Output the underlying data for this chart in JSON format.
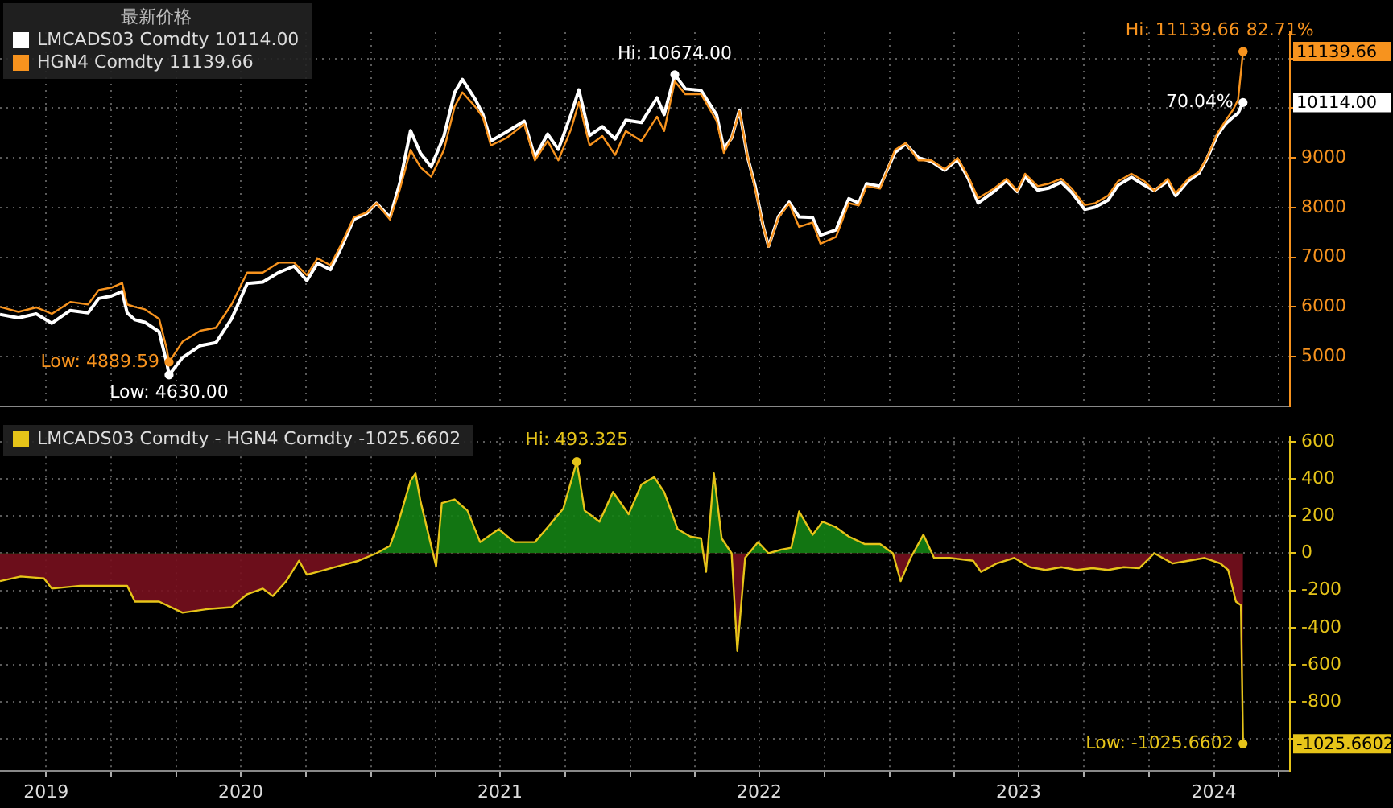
{
  "chart_data": [
    {
      "type": "line",
      "legend_title": "最新价格",
      "legend": "top left",
      "grid": true,
      "tick_labels": "y",
      "xlim": [
        "2019-07-28",
        "2024-07-17"
      ],
      "xticks": [
        {
          "value": "2019-10-01",
          "label": null
        },
        {
          "value": "2020-01-01",
          "label": null
        },
        {
          "value": "2020-04-01",
          "label": null
        },
        {
          "value": "2020-07-01",
          "label": null
        },
        {
          "value": "2020-10-01",
          "label": null
        },
        {
          "value": "2021-01-01",
          "label": null
        },
        {
          "value": "2021-04-01",
          "label": null
        },
        {
          "value": "2021-07-01",
          "label": null
        },
        {
          "value": "2021-10-01",
          "label": null
        },
        {
          "value": "2022-01-01",
          "label": null
        },
        {
          "value": "2022-04-01",
          "label": null
        },
        {
          "value": "2022-07-01",
          "label": null
        },
        {
          "value": "2022-10-01",
          "label": null
        },
        {
          "value": "2023-01-01",
          "label": null
        },
        {
          "value": "2023-04-01",
          "label": null
        },
        {
          "value": "2023-07-01",
          "label": null
        },
        {
          "value": "2023-10-01",
          "label": null
        },
        {
          "value": "2024-01-01",
          "label": null
        },
        {
          "value": "2024-04-01",
          "label": null
        },
        {
          "value": "2024-07-01",
          "label": null
        }
      ],
      "ylim": [
        4000,
        11530
      ],
      "yticks": [
        5000,
        6000,
        7000,
        8000,
        9000,
        {
          "value": 10000,
          "label": null
        },
        {
          "value": 11000,
          "label": null
        }
      ],
      "x": [
        "2019-07-28",
        "2019-08-23",
        "2019-09-17",
        "2019-10-09",
        "2019-11-04",
        "2019-11-29",
        "2019-12-14",
        "2020-01-01",
        "2020-01-16",
        "2020-01-23",
        "2020-02-03",
        "2020-02-17",
        "2020-03-08",
        "2020-03-19",
        "2020-03-22",
        "2020-04-10",
        "2020-05-05",
        "2020-05-27",
        "2020-06-18",
        "2020-07-10",
        "2020-08-01",
        "2020-08-23",
        "2020-09-14",
        "2020-10-02",
        "2020-10-17",
        "2020-11-04",
        "2020-11-18",
        "2020-12-07",
        "2020-12-25",
        "2021-01-08",
        "2021-01-27",
        "2021-02-10",
        "2021-02-25",
        "2021-03-11",
        "2021-03-26",
        "2021-04-13",
        "2021-04-28",
        "2021-05-09",
        "2021-05-27",
        "2021-06-07",
        "2021-06-18",
        "2021-07-10",
        "2021-08-04",
        "2021-08-19",
        "2021-09-06",
        "2021-09-21",
        "2021-10-09",
        "2021-10-20",
        "2021-11-04",
        "2021-11-22",
        "2021-12-10",
        "2021-12-25",
        "2022-01-16",
        "2022-02-07",
        "2022-02-17",
        "2022-03-04",
        "2022-03-19",
        "2022-04-10",
        "2022-05-02",
        "2022-05-12",
        "2022-05-23",
        "2022-06-03",
        "2022-06-14",
        "2022-06-25",
        "2022-07-06",
        "2022-07-14",
        "2022-07-28",
        "2022-08-12",
        "2022-08-26",
        "2022-09-14",
        "2022-09-25",
        "2022-10-17",
        "2022-11-04",
        "2022-11-18",
        "2022-11-29",
        "2022-12-18",
        "2023-01-08",
        "2023-01-23",
        "2023-02-10",
        "2023-02-28",
        "2023-03-19",
        "2023-04-06",
        "2023-04-21",
        "2023-05-05",
        "2023-05-27",
        "2023-06-14",
        "2023-06-29",
        "2023-07-10",
        "2023-07-28",
        "2023-08-12",
        "2023-08-30",
        "2023-09-14",
        "2023-10-02",
        "2023-10-17",
        "2023-11-04",
        "2023-11-18",
        "2023-12-07",
        "2023-12-25",
        "2024-01-08",
        "2024-01-27",
        "2024-02-07",
        "2024-02-25",
        "2024-03-11",
        "2024-03-22",
        "2024-04-06",
        "2024-04-17",
        "2024-04-28",
        "2024-05-05",
        "2024-05-12"
      ],
      "series": [
        {
          "name": "LMCADS03 Comdty 10114.00",
          "color": "#ffffff",
          "values": [
            5850,
            5780,
            5860,
            5670,
            5930,
            5880,
            6170,
            6220,
            6310,
            5880,
            5740,
            5690,
            5500,
            4860,
            4630,
            4980,
            5220,
            5280,
            5760,
            6470,
            6500,
            6690,
            6820,
            6530,
            6880,
            6750,
            7150,
            7760,
            7880,
            8090,
            7800,
            8500,
            9550,
            9090,
            8820,
            9440,
            10320,
            10580,
            10180,
            9870,
            9340,
            9520,
            9740,
            9010,
            9480,
            9170,
            9880,
            10370,
            9450,
            9630,
            9380,
            9760,
            9710,
            10210,
            9870,
            10674,
            10390,
            10360,
            9860,
            9180,
            9400,
            9960,
            9040,
            8440,
            7650,
            7220,
            7820,
            8110,
            7810,
            7800,
            7440,
            7550,
            8180,
            8090,
            8480,
            8430,
            9110,
            9280,
            9000,
            8930,
            8750,
            8970,
            8590,
            8090,
            8320,
            8540,
            8320,
            8620,
            8350,
            8390,
            8510,
            8300,
            7960,
            8010,
            8150,
            8450,
            8610,
            8450,
            8340,
            8530,
            8240,
            8540,
            8690,
            8980,
            9460,
            9680,
            9820,
            9900,
            10114
          ]
        },
        {
          "name": "HGN4 Comdty 11139.66",
          "color": "#f7931e",
          "values": [
            6000,
            5900,
            5990,
            5860,
            6100,
            6050,
            6340,
            6390,
            6480,
            6050,
            6000,
            5950,
            5760,
            5140,
            4889.59,
            5300,
            5520,
            5580,
            6050,
            6690,
            6690,
            6890,
            6890,
            6640,
            6980,
            6840,
            7220,
            7800,
            7900,
            8090,
            7760,
            8370,
            9160,
            8810,
            8620,
            9160,
            10030,
            10320,
            10030,
            9810,
            9250,
            9400,
            9680,
            8950,
            9340,
            8950,
            9580,
            10120,
            9250,
            9440,
            9060,
            9540,
            9340,
            9830,
            9540,
            10540,
            10280,
            10280,
            9740,
            9100,
            9400,
            9940,
            9060,
            8380,
            7650,
            7210,
            7800,
            8080,
            7610,
            7700,
            7270,
            7410,
            8090,
            8040,
            8430,
            8380,
            9160,
            9300,
            8950,
            8950,
            8770,
            9000,
            8630,
            8190,
            8380,
            8580,
            8340,
            8680,
            8430,
            8480,
            8580,
            8380,
            8050,
            8090,
            8240,
            8530,
            8680,
            8530,
            8340,
            8580,
            8290,
            8580,
            8720,
            9000,
            9500,
            9740,
            9970,
            10170,
            11139.66
          ]
        }
      ],
      "annotations": [
        "10114.00",
        "11139.66",
        {
          "text": "Hi: 10674.00",
          "x": "2022-03-04",
          "y": 10674
        },
        {
          "text": "Low: 4630.00",
          "x": "2020-03-22",
          "y": 4630
        },
        {
          "text": "Low: 4889.59",
          "x": "2020-03-22",
          "y": 4889.59
        },
        {
          "text": "Hi: 11139.66",
          "x": "2024-05-12",
          "y": 11139.66
        },
        {
          "text": "82.71%",
          "x": "2024-05-12",
          "y": 11139.66
        },
        {
          "text": "70.04%",
          "x": "2024-05-12",
          "y": 10114
        }
      ]
    },
    {
      "type": "area",
      "legend": "top left",
      "grid": true,
      "xlim": [
        "2019-07-28",
        "2024-07-17"
      ],
      "xticks": [
        {
          "value": "2019-10-01",
          "label": "2019"
        },
        {
          "value": "2020-01-01",
          "label": null
        },
        {
          "value": "2020-04-01",
          "label": null
        },
        {
          "value": "2020-07-01",
          "label": "2020"
        },
        {
          "value": "2020-10-01",
          "label": null
        },
        {
          "value": "2021-01-01",
          "label": null
        },
        {
          "value": "2021-04-01",
          "label": null
        },
        {
          "value": "2021-07-01",
          "label": "2021"
        },
        {
          "value": "2021-10-01",
          "label": null
        },
        {
          "value": "2022-01-01",
          "label": null
        },
        {
          "value": "2022-04-01",
          "label": null
        },
        {
          "value": "2022-07-01",
          "label": "2022"
        },
        {
          "value": "2022-10-01",
          "label": null
        },
        {
          "value": "2023-01-01",
          "label": null
        },
        {
          "value": "2023-04-01",
          "label": null
        },
        {
          "value": "2023-07-01",
          "label": "2023"
        },
        {
          "value": "2023-10-01",
          "label": null
        },
        {
          "value": "2024-01-01",
          "label": null
        },
        {
          "value": "2024-04-01",
          "label": "2024"
        },
        {
          "value": "2024-07-01",
          "label": null
        }
      ],
      "ylim": [
        -1170,
        625
      ],
      "yticks": [
        {
          "value": -1000,
          "label": null
        },
        -800,
        -600,
        -400,
        -200,
        0,
        200,
        400,
        600
      ],
      "series": [
        {
          "name": "LMCADS03 Comdty - HGN4 Comdty -1025.6602",
          "color": "#e6c419",
          "x": [
            "2019-07-28",
            "2019-08-26",
            "2019-09-28",
            "2019-10-09",
            "2019-11-18",
            "2020-01-01",
            "2020-01-23",
            "2020-02-03",
            "2020-03-08",
            "2020-04-10",
            "2020-05-16",
            "2020-06-18",
            "2020-07-10",
            "2020-08-01",
            "2020-08-15",
            "2020-09-03",
            "2020-09-21",
            "2020-10-02",
            "2020-10-17",
            "2020-11-15",
            "2020-12-14",
            "2021-01-08",
            "2021-01-27",
            "2021-02-07",
            "2021-02-25",
            "2021-03-04",
            "2021-03-11",
            "2021-04-02",
            "2021-04-10",
            "2021-04-28",
            "2021-05-16",
            "2021-06-03",
            "2021-06-29",
            "2021-07-21",
            "2021-08-19",
            "2021-09-06",
            "2021-09-28",
            "2021-10-17",
            "2021-10-28",
            "2021-11-18",
            "2021-12-07",
            "2021-12-29",
            "2022-01-16",
            "2022-02-03",
            "2022-02-17",
            "2022-03-08",
            "2022-03-26",
            "2022-04-10",
            "2022-04-17",
            "2022-04-21",
            "2022-04-28",
            "2022-05-09",
            "2022-05-23",
            "2022-05-31",
            "2022-06-11",
            "2022-06-29",
            "2022-07-14",
            "2022-08-01",
            "2022-08-15",
            "2022-08-26",
            "2022-09-14",
            "2022-09-28",
            "2022-10-17",
            "2022-11-04",
            "2022-11-26",
            "2022-12-18",
            "2023-01-05",
            "2023-01-16",
            "2023-01-30",
            "2023-02-17",
            "2023-03-04",
            "2023-03-26",
            "2023-04-28",
            "2023-05-09",
            "2023-05-31",
            "2023-06-25",
            "2023-07-17",
            "2023-08-08",
            "2023-08-30",
            "2023-09-21",
            "2023-10-13",
            "2023-11-04",
            "2023-11-26",
            "2023-12-18",
            "2024-01-08",
            "2024-02-03",
            "2024-02-25",
            "2024-03-19",
            "2024-04-10",
            "2024-04-21",
            "2024-05-02",
            "2024-05-09",
            "2024-05-12"
          ],
          "values": [
            -150,
            -125,
            -135,
            -190,
            -175,
            -175,
            -175,
            -260,
            -260,
            -320,
            -300,
            -290,
            -220,
            -190,
            -230,
            -150,
            -40,
            -115,
            -100,
            -70,
            -40,
            0,
            40,
            155,
            390,
            430,
            280,
            -70,
            270,
            290,
            230,
            60,
            130,
            60,
            60,
            140,
            240,
            493.325,
            230,
            170,
            330,
            210,
            370,
            410,
            330,
            130,
            90,
            80,
            -100,
            100,
            430,
            80,
            0,
            -525,
            -25,
            60,
            0,
            20,
            30,
            225,
            100,
            170,
            140,
            90,
            50,
            50,
            0,
            -150,
            -25,
            100,
            -25,
            -25,
            -40,
            -100,
            -55,
            -25,
            -75,
            -90,
            -75,
            -90,
            -80,
            -90,
            -75,
            -80,
            0,
            -55,
            -40,
            -25,
            -55,
            -90,
            -260,
            -280,
            -1025.6602
          ]
        }
      ],
      "annotations": [
        "-1025.6602",
        {
          "text": "Hi: 493.325",
          "x": "2021-10-17",
          "y": 493.325
        },
        {
          "text": "Low: -1025.6602",
          "x": "2024-05-12",
          "y": -1025.6602
        }
      ]
    }
  ]
}
